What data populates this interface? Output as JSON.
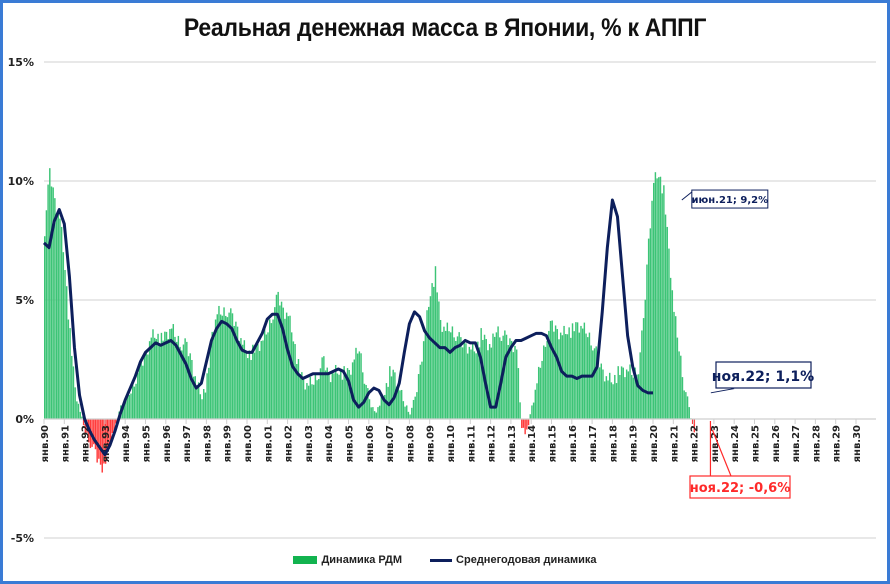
{
  "chart_data": {
    "type": "bar+line",
    "title": "Реальная денежная масса в Японии, % к АППГ",
    "xlabel": "",
    "ylabel": "",
    "ylim": [
      -5,
      15
    ],
    "yticks": [
      "15%",
      "10%",
      "5%",
      "0%",
      "-5%"
    ],
    "ytick_values": [
      15,
      10,
      5,
      0,
      -5
    ],
    "grid": true,
    "legend_position": "bottom",
    "x_tick_labels": [
      "янв.90",
      "янв.91",
      "янв.92",
      "янв.93",
      "янв.94",
      "янв.95",
      "янв.96",
      "янв.97",
      "янв.98",
      "янв.99",
      "янв.00",
      "янв.01",
      "янв.02",
      "янв.03",
      "янв.04",
      "янв.05",
      "янв.06",
      "янв.07",
      "янв.08",
      "янв.09",
      "янв.10",
      "янв.11",
      "янв.12",
      "янв.13",
      "янв.14",
      "янв.15",
      "янв.16",
      "янв.17",
      "янв.18",
      "янв.19",
      "янв.20",
      "янв.21",
      "янв.22",
      "янв.23",
      "янв.24",
      "янв.25",
      "янв.26",
      "янв.27",
      "янв.28",
      "янв.29",
      "янв.30"
    ],
    "series": [
      {
        "name": "Динамика РДМ",
        "type": "bar",
        "color_positive": "#3cc476",
        "color_negative": "#ff3b3b",
        "frequency": "monthly",
        "start": "янв.90",
        "quarterly_values": [
          8.0,
          10.3,
          9.2,
          8.5,
          6.5,
          3.5,
          1.2,
          0.3,
          -0.5,
          -1.0,
          -1.5,
          -2.0,
          -1.8,
          -0.8,
          -0.3,
          0.5,
          0.8,
          1.2,
          1.8,
          2.2,
          2.8,
          3.5,
          3.6,
          3.3,
          3.5,
          3.8,
          3.4,
          3.2,
          3.0,
          2.4,
          1.5,
          1.0,
          1.6,
          3.5,
          4.4,
          4.5,
          4.6,
          4.2,
          3.8,
          3.2,
          2.8,
          2.8,
          3.0,
          3.3,
          3.8,
          4.5,
          5.1,
          4.6,
          4.4,
          3.5,
          2.2,
          1.5,
          1.4,
          1.6,
          2.0,
          2.4,
          1.8,
          2.0,
          2.1,
          1.9,
          1.9,
          2.5,
          3.0,
          1.8,
          0.7,
          0.3,
          0.6,
          1.2,
          1.9,
          1.8,
          1.2,
          0.6,
          0.3,
          0.8,
          2.2,
          3.8,
          5.4,
          6.1,
          4.0,
          3.7,
          3.8,
          3.6,
          3.2,
          3.1,
          3.0,
          3.0,
          3.5,
          3.2,
          3.0,
          3.8,
          3.6,
          3.3,
          3.2,
          3.0,
          -0.3,
          -0.6,
          0.5,
          1.5,
          2.6,
          3.6,
          3.9,
          3.7,
          3.6,
          3.8,
          3.7,
          3.9,
          3.8,
          3.6,
          3.2,
          2.5,
          2.0,
          1.7,
          1.7,
          1.9,
          2.0,
          2.0,
          1.9,
          2.2,
          4.0,
          7.5,
          10.0,
          10.4,
          9.5,
          7.0,
          4.5,
          3.0,
          1.5,
          0.4,
          -0.6
        ]
      },
      {
        "name": "Среднегодовая динамика",
        "type": "line",
        "color": "#0d1f5c",
        "frequency": "quarterly",
        "start": "янв.90",
        "values": [
          7.4,
          7.2,
          8.3,
          8.8,
          8.2,
          6.0,
          3.0,
          1.0,
          0.0,
          -0.5,
          -0.9,
          -1.2,
          -1.5,
          -1.1,
          -0.5,
          0.2,
          0.8,
          1.3,
          1.8,
          2.4,
          2.8,
          3.0,
          3.2,
          3.1,
          3.2,
          3.3,
          3.1,
          2.7,
          2.3,
          1.7,
          1.3,
          1.5,
          2.4,
          3.3,
          3.8,
          4.1,
          4.0,
          3.8,
          3.3,
          2.9,
          2.8,
          2.8,
          3.2,
          3.6,
          4.2,
          4.4,
          4.4,
          3.8,
          2.9,
          2.2,
          1.9,
          1.7,
          1.8,
          1.9,
          1.9,
          1.9,
          1.9,
          2.0,
          2.1,
          2.0,
          1.6,
          0.8,
          0.5,
          0.7,
          1.1,
          1.3,
          1.2,
          0.8,
          0.6,
          0.9,
          1.5,
          2.8,
          4.0,
          4.5,
          4.3,
          3.7,
          3.4,
          3.2,
          3.0,
          3.0,
          2.8,
          3.0,
          3.1,
          3.3,
          3.2,
          3.2,
          2.6,
          1.5,
          0.5,
          0.5,
          1.5,
          2.6,
          3.0,
          3.3,
          3.3,
          3.4,
          3.5,
          3.6,
          3.6,
          3.5,
          3.0,
          2.6,
          2.0,
          1.8,
          1.8,
          1.7,
          1.8,
          1.8,
          1.8,
          2.2,
          4.5,
          7.2,
          9.2,
          8.5,
          6.0,
          3.5,
          2.2,
          1.4,
          1.2,
          1.1,
          1.1
        ]
      }
    ],
    "annotations": [
      {
        "text": "июн.21; 9,2%",
        "series": "Среднегодовая динамика",
        "x": "июн.21",
        "y": 9.2
      },
      {
        "text": "ноя.22; 1,1%",
        "series": "Среднегодовая динамика",
        "x": "ноя.22",
        "y": 1.1
      },
      {
        "text": "ноя.22; -0,6%",
        "series": "Динамика РДМ",
        "x": "ноя.22",
        "y": -0.6
      }
    ]
  },
  "legend": {
    "bar_label": "Динамика РДМ",
    "line_label": "Среднегодовая динамика"
  },
  "colors": {
    "bar_positive": "#3cc476",
    "bar_negative": "#ff3b3b",
    "line": "#0d1f5c",
    "frame": "#3a7bd5",
    "grid": "#d9d9d9"
  }
}
